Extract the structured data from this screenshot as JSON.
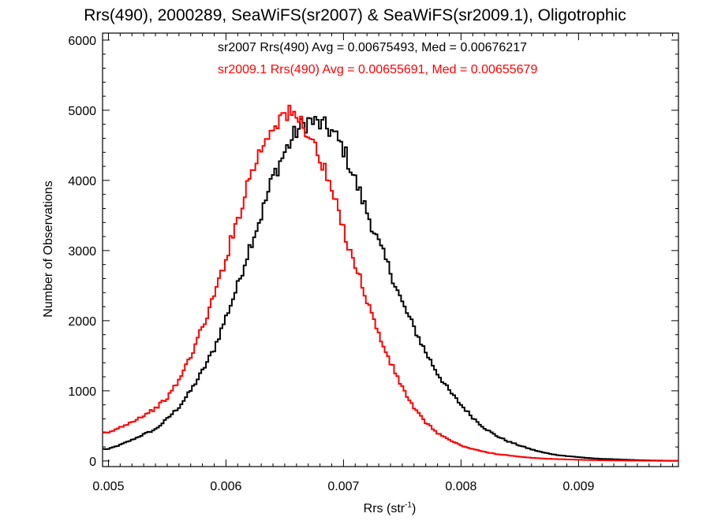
{
  "chart_data": {
    "type": "line",
    "title": "Rrs(490), 2000289, SeaWiFS(sr2007) & SeaWiFS(sr2009.1), Oligotrophic",
    "xlabel_main": "Rrs (str",
    "xlabel_sup": "-1",
    "xlabel_close": ")",
    "ylabel": "Number of Observations",
    "xlim": [
      0.00495,
      0.00985
    ],
    "ylim": [
      -80,
      6100
    ],
    "x_ticks": [
      0.005,
      0.006,
      0.007,
      0.008,
      0.009
    ],
    "x_tick_labels": [
      "0.005",
      "0.006",
      "0.007",
      "0.008",
      "0.009"
    ],
    "y_ticks": [
      0,
      1000,
      2000,
      3000,
      4000,
      5000,
      6000
    ],
    "y_tick_labels": [
      "0",
      "1000",
      "2000",
      "3000",
      "4000",
      "5000",
      "6000"
    ],
    "grid": false,
    "annotations": [
      {
        "text": "sr2007 Rrs(490) Avg = 0.00675493, Med = 0.00676217",
        "color": "#000000"
      },
      {
        "text": "sr2009.1 Rrs(490) Avg = 0.00655691, Med = 0.00655679",
        "color": "#ff0000"
      }
    ],
    "series": [
      {
        "color": "#000000",
        "x": [
          0.005,
          0.0051,
          0.0052,
          0.0053,
          0.0054,
          0.0055,
          0.0056,
          0.0057,
          0.0058,
          0.0059,
          0.006,
          0.0061,
          0.0062,
          0.0063,
          0.0064,
          0.0065,
          0.0066,
          0.0067,
          0.0068,
          0.0069,
          0.007,
          0.0071,
          0.0072,
          0.0073,
          0.0074,
          0.0075,
          0.0076,
          0.0077,
          0.0078,
          0.0079,
          0.008,
          0.0081,
          0.0082,
          0.0083,
          0.0084,
          0.0085,
          0.0086,
          0.0087,
          0.0088,
          0.0089,
          0.009,
          0.0091,
          0.0092,
          0.0093,
          0.0094,
          0.0095,
          0.0096,
          0.0097,
          0.0098
        ],
        "y": [
          170,
          230,
          300,
          380,
          450,
          600,
          770,
          1000,
          1280,
          1600,
          2050,
          2500,
          3050,
          3500,
          4050,
          4400,
          4700,
          4850,
          4800,
          4700,
          4450,
          4000,
          3550,
          3100,
          2700,
          2250,
          1900,
          1550,
          1250,
          1000,
          800,
          620,
          470,
          360,
          280,
          220,
          165,
          120,
          90,
          70,
          55,
          40,
          30,
          25,
          18,
          12,
          8,
          5,
          3
        ]
      },
      {
        "color": "#ff0000",
        "x": [
          0.005,
          0.0051,
          0.0052,
          0.0053,
          0.0054,
          0.0055,
          0.0056,
          0.0057,
          0.0058,
          0.0059,
          0.006,
          0.0061,
          0.0062,
          0.0063,
          0.0064,
          0.0065,
          0.0066,
          0.0067,
          0.0068,
          0.0069,
          0.007,
          0.0071,
          0.0072,
          0.0073,
          0.0074,
          0.0075,
          0.0076,
          0.0077,
          0.0078,
          0.0079,
          0.008,
          0.0081,
          0.0082,
          0.0083,
          0.0084,
          0.0085,
          0.0086,
          0.0087,
          0.0088,
          0.0089,
          0.009,
          0.0091,
          0.0092,
          0.0093,
          0.0094,
          0.0095,
          0.0096,
          0.0097,
          0.0098
        ],
        "y": [
          400,
          480,
          560,
          650,
          750,
          900,
          1150,
          1500,
          1900,
          2350,
          2900,
          3450,
          4050,
          4450,
          4800,
          4950,
          4900,
          4700,
          4300,
          3850,
          3300,
          2800,
          2300,
          1800,
          1400,
          1050,
          750,
          550,
          400,
          300,
          220,
          170,
          130,
          100,
          80,
          60,
          45,
          35,
          28,
          22,
          17,
          13,
          10,
          8,
          6,
          4,
          3,
          2,
          1
        ]
      }
    ]
  }
}
